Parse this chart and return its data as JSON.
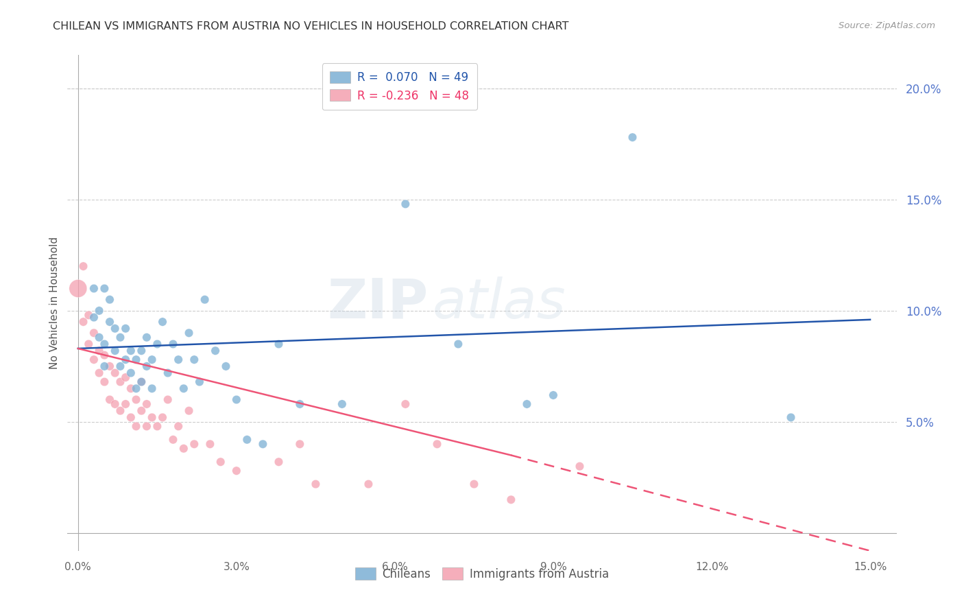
{
  "title": "CHILEAN VS IMMIGRANTS FROM AUSTRIA NO VEHICLES IN HOUSEHOLD CORRELATION CHART",
  "source": "Source: ZipAtlas.com",
  "ylabel": "No Vehicles in Household",
  "xlabel_chileans": "Chileans",
  "xlabel_immigrants": "Immigrants from Austria",
  "xlim": [
    -0.002,
    0.155
  ],
  "ylim": [
    -0.008,
    0.215
  ],
  "xticks": [
    0.0,
    0.03,
    0.06,
    0.09,
    0.12,
    0.15
  ],
  "yticks": [
    0.05,
    0.1,
    0.15,
    0.2
  ],
  "ytick_labels": [
    "5.0%",
    "10.0%",
    "15.0%",
    "20.0%"
  ],
  "xtick_labels": [
    "0.0%",
    "3.0%",
    "6.0%",
    "9.0%",
    "12.0%",
    "15.0%"
  ],
  "legend_blue_r": "R =  0.070",
  "legend_blue_n": "N = 49",
  "legend_pink_r": "R = -0.236",
  "legend_pink_n": "N = 48",
  "blue_color": "#7BAFD4",
  "pink_color": "#F4A0B0",
  "line_blue_color": "#2255AA",
  "line_pink_color": "#EE5577",
  "watermark_zip": "ZIP",
  "watermark_atlas": "atlas",
  "blue_scatter_x": [
    0.003,
    0.003,
    0.004,
    0.004,
    0.005,
    0.005,
    0.005,
    0.006,
    0.006,
    0.007,
    0.007,
    0.008,
    0.008,
    0.009,
    0.009,
    0.01,
    0.01,
    0.011,
    0.011,
    0.012,
    0.012,
    0.013,
    0.013,
    0.014,
    0.014,
    0.015,
    0.016,
    0.017,
    0.018,
    0.019,
    0.02,
    0.021,
    0.022,
    0.023,
    0.024,
    0.026,
    0.028,
    0.03,
    0.032,
    0.035,
    0.038,
    0.042,
    0.05,
    0.062,
    0.072,
    0.085,
    0.09,
    0.105,
    0.135
  ],
  "blue_scatter_y": [
    0.097,
    0.11,
    0.088,
    0.1,
    0.075,
    0.085,
    0.11,
    0.095,
    0.105,
    0.082,
    0.092,
    0.075,
    0.088,
    0.078,
    0.092,
    0.072,
    0.082,
    0.065,
    0.078,
    0.068,
    0.082,
    0.075,
    0.088,
    0.065,
    0.078,
    0.085,
    0.095,
    0.072,
    0.085,
    0.078,
    0.065,
    0.09,
    0.078,
    0.068,
    0.105,
    0.082,
    0.075,
    0.06,
    0.042,
    0.04,
    0.085,
    0.058,
    0.058,
    0.148,
    0.085,
    0.058,
    0.062,
    0.178,
    0.052
  ],
  "blue_scatter_sizes": [
    80,
    80,
    80,
    80,
    80,
    80,
    80,
    80,
    80,
    80,
    80,
    80,
    80,
    80,
    80,
    80,
    80,
    80,
    80,
    80,
    80,
    80,
    80,
    80,
    80,
    80,
    80,
    80,
    80,
    80,
    80,
    80,
    80,
    80,
    80,
    80,
    80,
    80,
    80,
    80,
    80,
    80,
    80,
    80,
    80,
    80,
    80,
    80,
    80
  ],
  "pink_scatter_x": [
    0.0,
    0.001,
    0.001,
    0.002,
    0.002,
    0.003,
    0.003,
    0.004,
    0.004,
    0.005,
    0.005,
    0.006,
    0.006,
    0.007,
    0.007,
    0.008,
    0.008,
    0.009,
    0.009,
    0.01,
    0.01,
    0.011,
    0.011,
    0.012,
    0.012,
    0.013,
    0.013,
    0.014,
    0.015,
    0.016,
    0.017,
    0.018,
    0.019,
    0.02,
    0.021,
    0.022,
    0.025,
    0.027,
    0.03,
    0.038,
    0.042,
    0.045,
    0.055,
    0.062,
    0.068,
    0.075,
    0.082,
    0.095
  ],
  "pink_scatter_y": [
    0.11,
    0.095,
    0.12,
    0.085,
    0.098,
    0.078,
    0.09,
    0.072,
    0.082,
    0.068,
    0.08,
    0.06,
    0.075,
    0.058,
    0.072,
    0.055,
    0.068,
    0.058,
    0.07,
    0.052,
    0.065,
    0.048,
    0.06,
    0.055,
    0.068,
    0.048,
    0.058,
    0.052,
    0.048,
    0.052,
    0.06,
    0.042,
    0.048,
    0.038,
    0.055,
    0.04,
    0.04,
    0.032,
    0.028,
    0.032,
    0.04,
    0.022,
    0.022,
    0.058,
    0.04,
    0.022,
    0.015,
    0.03
  ],
  "pink_scatter_sizes": [
    350,
    80,
    80,
    80,
    80,
    80,
    80,
    80,
    80,
    80,
    80,
    80,
    80,
    80,
    80,
    80,
    80,
    80,
    80,
    80,
    80,
    80,
    80,
    80,
    80,
    80,
    80,
    80,
    80,
    80,
    80,
    80,
    80,
    80,
    80,
    80,
    80,
    80,
    80,
    80,
    80,
    80,
    80,
    80,
    80,
    80,
    80,
    80
  ],
  "blue_line": {
    "x0": 0.0,
    "x1": 0.15,
    "y0": 0.083,
    "y1": 0.096
  },
  "pink_line_solid": {
    "x0": 0.0,
    "x1": 0.082,
    "y0": 0.083,
    "y1": 0.035
  },
  "pink_line_dashed": {
    "x0": 0.082,
    "x1": 0.15,
    "y0": 0.035,
    "y1": -0.008
  }
}
